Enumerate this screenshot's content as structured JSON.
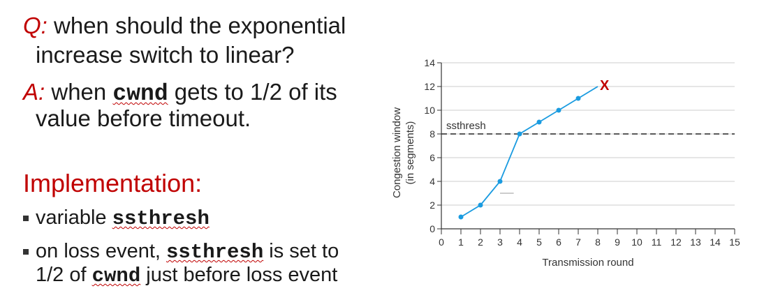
{
  "text": {
    "q_label": "Q:",
    "q_line1": " when should the exponential",
    "q_line2": "increase switch to linear?",
    "a_label": "A:",
    "a_pre": " when ",
    "a_code": "cwnd",
    "a_post": " gets to 1/2 of its",
    "a_line2": "value before timeout.",
    "impl_heading": "Implementation:",
    "bullet1_pre": "variable ",
    "bullet1_code": "ssthresh",
    "bullet2_pre": "on loss event, ",
    "bullet2_code": "ssthresh",
    "bullet2_post": " is set to",
    "bullet2_line2_pre": "1/2 of ",
    "bullet2_line2_code": "cwnd",
    "bullet2_line2_post": "  just before loss event"
  },
  "colors": {
    "accent": "#c00000",
    "series": "#1a9be0"
  },
  "chart_data": {
    "type": "line",
    "xlabel": "Transmission round",
    "ylabel_line1": "Congestion window",
    "ylabel_line2": "(in segments)",
    "x_ticks": [
      0,
      1,
      2,
      3,
      4,
      5,
      6,
      7,
      8,
      9,
      10,
      11,
      12,
      13,
      14,
      15
    ],
    "y_ticks": [
      0,
      2,
      4,
      6,
      8,
      10,
      12,
      14
    ],
    "xlim": [
      0,
      15
    ],
    "ylim": [
      0,
      14
    ],
    "series": [
      {
        "x": [
          1,
          2,
          3,
          4,
          5,
          6,
          7,
          8
        ],
        "y": [
          1,
          2,
          4,
          8,
          9,
          10,
          11,
          12
        ]
      }
    ],
    "loss_marker": {
      "x": 8,
      "y": 12,
      "label": "X"
    },
    "threshold": {
      "y": 8,
      "label": "ssthresh"
    },
    "grid": true
  }
}
